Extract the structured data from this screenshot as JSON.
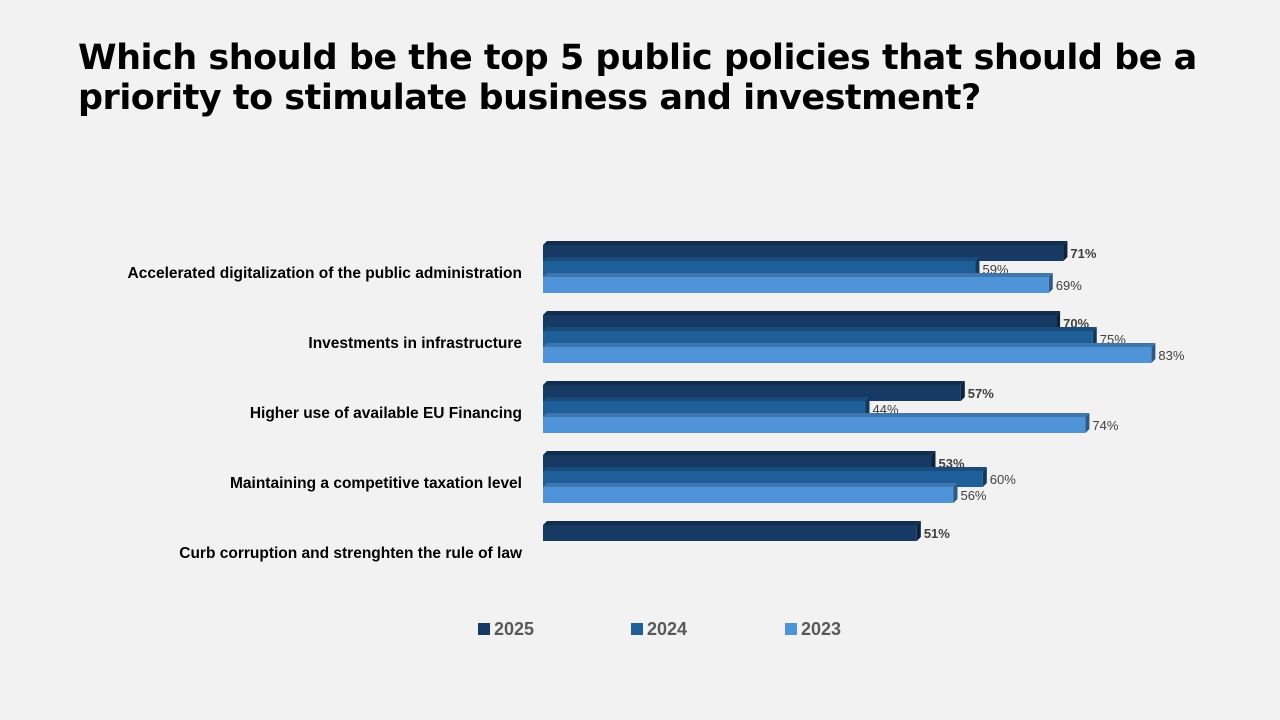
{
  "chart_data": {
    "type": "bar",
    "orientation": "horizontal",
    "title": "Which should be the top 5 public policies that should be a priority to stimulate business and investment?",
    "categories": [
      "Accelerated digitalization of the public administration",
      "Investments in infrastructure",
      "Higher use of available EU Financing",
      "Maintaining a competitive taxation level",
      "Curb corruption and strenghten the rule of law"
    ],
    "series": [
      {
        "name": "2025",
        "color": "#163a63",
        "values": [
          71,
          70,
          57,
          53,
          51
        ],
        "labels": [
          "71%",
          "70%",
          "57%",
          "53%",
          "51%"
        ]
      },
      {
        "name": "2024",
        "color": "#1f5f99",
        "values": [
          59,
          75,
          44,
          60,
          null
        ],
        "labels": [
          "59%",
          "75%",
          "44%",
          "60%",
          null
        ]
      },
      {
        "name": "2023",
        "color": "#4f94d8",
        "values": [
          69,
          83,
          74,
          56,
          null
        ],
        "labels": [
          "69%",
          "83%",
          "74%",
          "56%",
          null
        ]
      }
    ],
    "xlabel": "",
    "ylabel": "",
    "xlim": [
      0,
      100
    ],
    "grid": false,
    "legend": "bottom"
  }
}
